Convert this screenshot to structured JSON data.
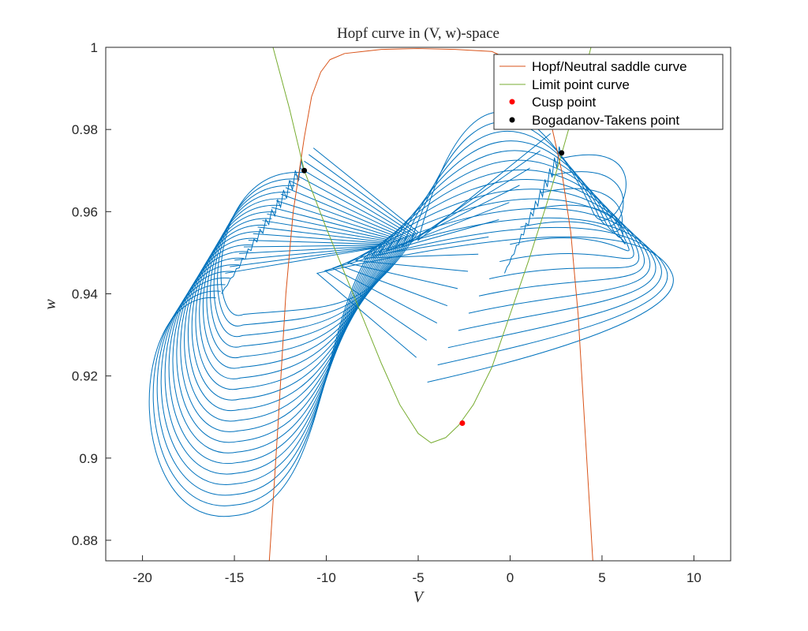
{
  "chart_data": {
    "type": "line",
    "title": "Hopf curve in (V, w)-space",
    "xlabel": "V",
    "ylabel": "w",
    "xlim": [
      -22,
      12
    ],
    "ylim": [
      0.875,
      1.0
    ],
    "xticks": [
      -20,
      -15,
      -10,
      -5,
      0,
      5,
      10
    ],
    "xtick_labels": [
      "-20",
      "-15",
      "-10",
      "-5",
      "0",
      "5",
      "10"
    ],
    "yticks": [
      0.88,
      0.9,
      0.92,
      0.94,
      0.96,
      0.98,
      1.0
    ],
    "ytick_labels": [
      "0.88",
      "0.9",
      "0.92",
      "0.94",
      "0.96",
      "0.98",
      "1"
    ],
    "grid": false,
    "legend_position": "top-right",
    "series": [
      {
        "name": "Hopf/Neutral saddle curve",
        "color": "#d95319",
        "style": "line",
        "x": [
          -13.1,
          -12.6,
          -12.2,
          -11.8,
          -11.2,
          -10.8,
          -10.3,
          -9.8,
          -9.0,
          -8.0,
          -7.0,
          -5.0,
          -3.0,
          -1.0,
          0.5,
          1.5,
          2.2,
          2.8,
          3.3,
          3.7,
          4.1,
          4.5
        ],
        "y": [
          0.875,
          0.91,
          0.94,
          0.96,
          0.978,
          0.988,
          0.994,
          0.997,
          0.9985,
          0.999,
          0.9995,
          0.9997,
          0.9995,
          0.999,
          0.996,
          0.99,
          0.982,
          0.97,
          0.955,
          0.935,
          0.905,
          0.875
        ]
      },
      {
        "name": "Limit point curve",
        "color": "#77ac30",
        "style": "line",
        "x": [
          -12.9,
          -12.0,
          -11.2,
          -10.0,
          -9.0,
          -8.0,
          -7.0,
          -6.0,
          -5.0,
          -4.3,
          -3.5,
          -2.8,
          -2.0,
          -1.0,
          0.0,
          1.0,
          2.0,
          2.8,
          3.5,
          4.0,
          4.4
        ],
        "y": [
          1.0,
          0.985,
          0.97,
          0.956,
          0.945,
          0.934,
          0.923,
          0.913,
          0.906,
          0.9037,
          0.905,
          0.908,
          0.913,
          0.922,
          0.935,
          0.948,
          0.962,
          0.974,
          0.985,
          0.993,
          1.0
        ]
      },
      {
        "name": "Cusp point",
        "color": "#ff0000",
        "style": "marker",
        "x": [
          -2.6
        ],
        "y": [
          0.9085
        ]
      },
      {
        "name": "Bogadanov-Takens point",
        "color": "#000000",
        "style": "marker",
        "x": [
          -11.2,
          2.8
        ],
        "y": [
          0.97,
          0.9743
        ]
      }
    ],
    "periodic_orbits": {
      "color": "#0072bd",
      "left_family": {
        "count": 20,
        "apex_start": [
          -16.0,
          0.939
        ],
        "apex_end": [
          -11.2,
          0.9695
        ],
        "outer_first": [
          -15.0,
          0.886
        ],
        "outer_last": [
          -14.5,
          0.935
        ],
        "right_tip": [
          -5.0,
          0.955
        ]
      },
      "right_family": {
        "count": 14,
        "apex_start": [
          -4.5,
          0.9185
        ],
        "apex_end": [
          2.8,
          0.973
        ],
        "outer_first": [
          8.8,
          0.945
        ],
        "outer_last": [
          4.5,
          0.96
        ],
        "left_tip": [
          -10.5,
          0.945
        ]
      }
    }
  }
}
